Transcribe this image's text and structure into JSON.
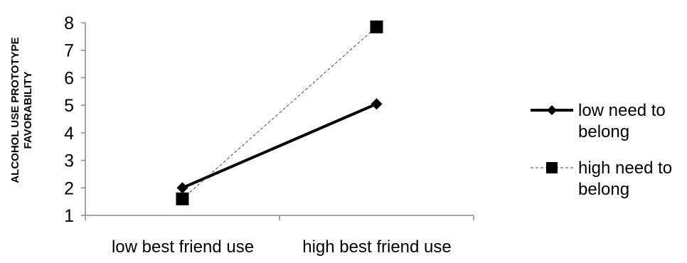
{
  "chart_data": {
    "type": "line",
    "categories": [
      "low best friend use",
      "high best friend use"
    ],
    "ylabel_lines": [
      "ALCOHOL USE PROTOTYPE",
      "FAVORABILITY"
    ],
    "xlabel": "",
    "ylim": [
      1,
      8
    ],
    "yticks": [
      1,
      2,
      3,
      4,
      5,
      6,
      7,
      8
    ],
    "grid": false,
    "legend_position": "right",
    "series": [
      {
        "name_lines": [
          "low need to",
          "belong"
        ],
        "values": [
          2.0,
          5.05
        ],
        "marker": "diamond",
        "line_style": "solid-thick",
        "color": "#000000"
      },
      {
        "name_lines": [
          "high need to",
          "belong"
        ],
        "values": [
          1.6,
          7.85
        ],
        "marker": "square",
        "line_style": "dashed-thin",
        "color": "#000000"
      }
    ]
  }
}
